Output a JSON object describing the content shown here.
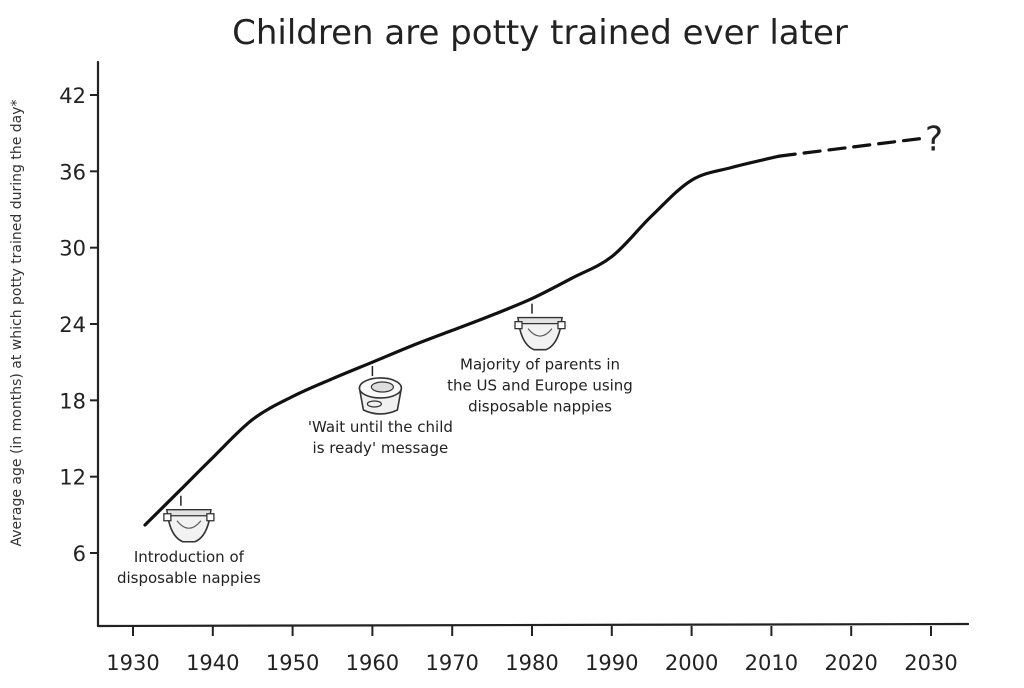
{
  "chart_data": {
    "type": "line",
    "title": "Children are potty trained ever later",
    "ylabel": "Average age (in months) at which potty trained during the day*",
    "xlabel": "",
    "xlim": [
      1923,
      2035
    ],
    "ylim": [
      0,
      45
    ],
    "x_ticks": [
      1930,
      1940,
      1950,
      1960,
      1970,
      1980,
      1990,
      2000,
      2010,
      2020,
      2030
    ],
    "y_ticks": [
      6,
      12,
      18,
      24,
      30,
      36,
      42
    ],
    "series": [
      {
        "style": "solid",
        "x": [
          1931.5,
          1936,
          1940,
          1945,
          1950,
          1955,
          1960,
          1965,
          1970,
          1975,
          1980,
          1985,
          1990,
          1995,
          2000,
          2005,
          2011
        ],
        "y": [
          8.2,
          11,
          13.5,
          16.5,
          18.3,
          19.7,
          21,
          22.3,
          23.5,
          24.7,
          26,
          27.6,
          29.3,
          32.5,
          35.3,
          36.3,
          37.2
        ]
      },
      {
        "style": "dashed",
        "x": [
          2011,
          2020,
          2029
        ],
        "y": [
          37.2,
          37.9,
          38.6
        ]
      }
    ],
    "end_marker": "?",
    "grid": false,
    "annotations": [
      {
        "lines": [
          "Introduction of",
          "disposable nappies"
        ],
        "x": 1936,
        "y": 10.5,
        "icon": "nappy-icon"
      },
      {
        "lines": [
          "'Wait until the child",
          "is ready' message"
        ],
        "x": 1960,
        "y": 20.7,
        "icon": "potty-icon"
      },
      {
        "lines": [
          "Majority of parents in",
          "the US and Europe using",
          "disposable nappies"
        ],
        "x": 1980,
        "y": 25.6,
        "icon": "nappy-icon"
      }
    ]
  }
}
